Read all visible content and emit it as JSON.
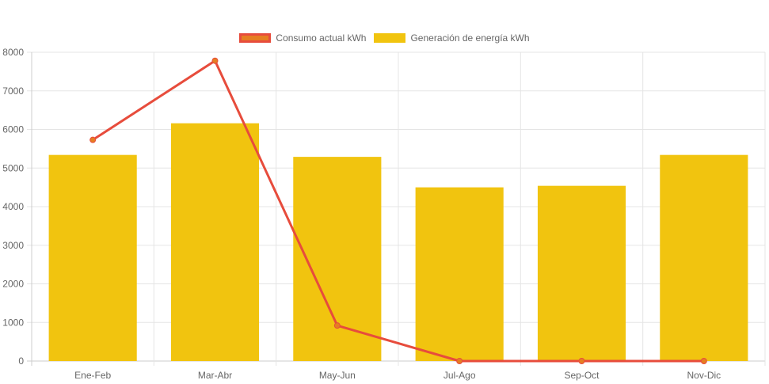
{
  "chart_data": {
    "type": "bar",
    "categories": [
      "Ene-Feb",
      "Mar-Abr",
      "May-Jun",
      "Jul-Ago",
      "Sep-Oct",
      "Nov-Dic"
    ],
    "series": [
      {
        "name": "Consumo actual kWh",
        "type": "line",
        "values": [
          5730,
          7780,
          920,
          0,
          0,
          0
        ],
        "color": "#e74c3c",
        "point_color": "#e67e22"
      },
      {
        "name": "Generación de energía kWh",
        "type": "bar",
        "values": [
          5340,
          6160,
          5290,
          4500,
          4540,
          5340
        ],
        "color": "#f1c40f"
      }
    ],
    "y_ticks": [
      "0",
      "1000",
      "2000",
      "3000",
      "4000",
      "5000",
      "6000",
      "7000",
      "8000"
    ],
    "ylim": [
      0,
      8000
    ],
    "grid": true,
    "legend_position": "top-center"
  }
}
